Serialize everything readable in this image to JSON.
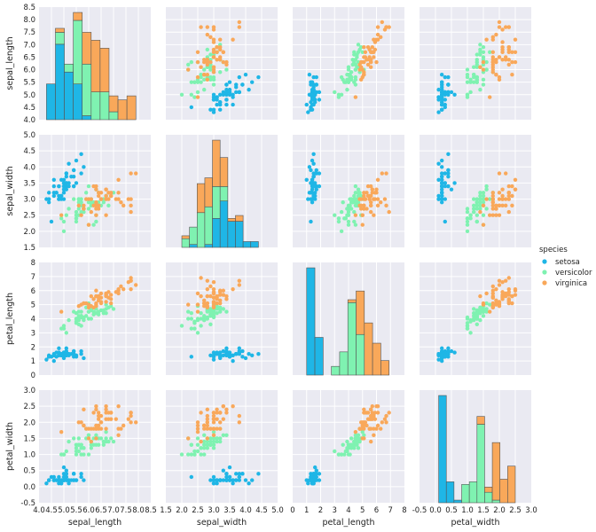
{
  "chart_data": {
    "type": "scatter",
    "kind": "pairplot",
    "grid": true,
    "legend_position": "right",
    "variables": [
      {
        "name": "sepal_length",
        "range": [
          4.0,
          8.5
        ],
        "ticks": [
          "4.0",
          "4.5",
          "5.0",
          "5.5",
          "6.0",
          "6.5",
          "7.0",
          "7.5",
          "8.0",
          "8.5"
        ]
      },
      {
        "name": "sepal_width",
        "range": [
          1.5,
          5.0
        ],
        "ticks": [
          "1.5",
          "2.0",
          "2.5",
          "3.0",
          "3.5",
          "4.0",
          "4.5",
          "5.0"
        ]
      },
      {
        "name": "petal_length",
        "range": [
          0,
          8
        ],
        "ticks": [
          "0",
          "1",
          "2",
          "3",
          "4",
          "5",
          "6",
          "7",
          "8"
        ]
      },
      {
        "name": "petal_width",
        "range": [
          -0.5,
          3.0
        ],
        "ticks": [
          "-0.5",
          "0.0",
          "0.5",
          "1.0",
          "1.5",
          "2.0",
          "2.5",
          "3.0"
        ]
      }
    ],
    "legend": {
      "title": "species",
      "entries": [
        {
          "name": "setosa",
          "color": "#1fb6e6"
        },
        {
          "name": "versicolor",
          "color": "#7ff2b1"
        },
        {
          "name": "virginica",
          "color": "#f9a85a"
        }
      ]
    },
    "colors": {
      "panel_bg": "#eaeaf2",
      "grid": "#ffffff",
      "edge": "#555555"
    },
    "series": [
      {
        "name": "setosa",
        "points": [
          [
            5.1,
            3.5,
            1.4,
            0.2
          ],
          [
            4.9,
            3.0,
            1.4,
            0.2
          ],
          [
            4.7,
            3.2,
            1.3,
            0.2
          ],
          [
            4.6,
            3.1,
            1.5,
            0.2
          ],
          [
            5.0,
            3.6,
            1.4,
            0.2
          ],
          [
            5.4,
            3.9,
            1.7,
            0.4
          ],
          [
            4.6,
            3.4,
            1.4,
            0.3
          ],
          [
            5.0,
            3.4,
            1.5,
            0.2
          ],
          [
            4.4,
            2.9,
            1.4,
            0.2
          ],
          [
            4.9,
            3.1,
            1.5,
            0.1
          ],
          [
            5.4,
            3.7,
            1.5,
            0.2
          ],
          [
            4.8,
            3.4,
            1.6,
            0.2
          ],
          [
            4.8,
            3.0,
            1.4,
            0.1
          ],
          [
            4.3,
            3.0,
            1.1,
            0.1
          ],
          [
            5.8,
            4.0,
            1.2,
            0.2
          ],
          [
            5.7,
            4.4,
            1.5,
            0.4
          ],
          [
            5.4,
            3.9,
            1.3,
            0.4
          ],
          [
            5.1,
            3.5,
            1.4,
            0.3
          ],
          [
            5.7,
            3.8,
            1.7,
            0.3
          ],
          [
            5.1,
            3.8,
            1.5,
            0.3
          ],
          [
            5.4,
            3.4,
            1.7,
            0.2
          ],
          [
            5.1,
            3.7,
            1.5,
            0.4
          ],
          [
            4.6,
            3.6,
            1.0,
            0.2
          ],
          [
            5.1,
            3.3,
            1.7,
            0.5
          ],
          [
            4.8,
            3.4,
            1.9,
            0.2
          ],
          [
            5.0,
            3.0,
            1.6,
            0.2
          ],
          [
            5.0,
            3.4,
            1.6,
            0.4
          ],
          [
            5.2,
            3.5,
            1.5,
            0.2
          ],
          [
            5.2,
            3.4,
            1.4,
            0.2
          ],
          [
            4.7,
            3.2,
            1.6,
            0.2
          ],
          [
            4.8,
            3.1,
            1.6,
            0.2
          ],
          [
            5.4,
            3.4,
            1.5,
            0.4
          ],
          [
            5.2,
            4.1,
            1.5,
            0.1
          ],
          [
            5.5,
            4.2,
            1.4,
            0.2
          ],
          [
            4.9,
            3.1,
            1.5,
            0.2
          ],
          [
            5.0,
            3.2,
            1.2,
            0.2
          ],
          [
            5.5,
            3.5,
            1.3,
            0.2
          ],
          [
            4.9,
            3.6,
            1.4,
            0.1
          ],
          [
            4.4,
            3.0,
            1.3,
            0.2
          ],
          [
            5.1,
            3.4,
            1.5,
            0.2
          ],
          [
            5.0,
            3.5,
            1.3,
            0.3
          ],
          [
            4.5,
            2.3,
            1.3,
            0.3
          ],
          [
            4.4,
            3.2,
            1.3,
            0.2
          ],
          [
            5.0,
            3.5,
            1.6,
            0.6
          ],
          [
            5.1,
            3.8,
            1.9,
            0.4
          ],
          [
            4.8,
            3.0,
            1.4,
            0.3
          ],
          [
            5.1,
            3.8,
            1.6,
            0.2
          ],
          [
            4.6,
            3.2,
            1.4,
            0.2
          ],
          [
            5.3,
            3.7,
            1.5,
            0.2
          ],
          [
            5.0,
            3.3,
            1.4,
            0.2
          ]
        ]
      },
      {
        "name": "versicolor",
        "points": [
          [
            7.0,
            3.2,
            4.7,
            1.4
          ],
          [
            6.4,
            3.2,
            4.5,
            1.5
          ],
          [
            6.9,
            3.1,
            4.9,
            1.5
          ],
          [
            5.5,
            2.3,
            4.0,
            1.3
          ],
          [
            6.5,
            2.8,
            4.6,
            1.5
          ],
          [
            5.7,
            2.8,
            4.5,
            1.3
          ],
          [
            6.3,
            3.3,
            4.7,
            1.6
          ],
          [
            4.9,
            2.4,
            3.3,
            1.0
          ],
          [
            6.6,
            2.9,
            4.6,
            1.3
          ],
          [
            5.2,
            2.7,
            3.9,
            1.4
          ],
          [
            5.0,
            2.0,
            3.5,
            1.0
          ],
          [
            5.9,
            3.0,
            4.2,
            1.5
          ],
          [
            6.0,
            2.2,
            4.0,
            1.0
          ],
          [
            6.1,
            2.9,
            4.7,
            1.4
          ],
          [
            5.6,
            2.9,
            3.6,
            1.3
          ],
          [
            6.7,
            3.1,
            4.4,
            1.4
          ],
          [
            5.6,
            3.0,
            4.5,
            1.5
          ],
          [
            5.8,
            2.7,
            4.1,
            1.0
          ],
          [
            6.2,
            2.2,
            4.5,
            1.5
          ],
          [
            5.6,
            2.5,
            3.9,
            1.1
          ],
          [
            5.9,
            3.2,
            4.8,
            1.8
          ],
          [
            6.1,
            2.8,
            4.0,
            1.3
          ],
          [
            6.3,
            2.5,
            4.9,
            1.5
          ],
          [
            6.1,
            2.8,
            4.7,
            1.2
          ],
          [
            6.4,
            2.9,
            4.3,
            1.3
          ],
          [
            6.6,
            3.0,
            4.4,
            1.4
          ],
          [
            6.8,
            2.8,
            4.8,
            1.4
          ],
          [
            6.7,
            3.0,
            5.0,
            1.7
          ],
          [
            6.0,
            2.9,
            4.5,
            1.5
          ],
          [
            5.7,
            2.6,
            3.5,
            1.0
          ],
          [
            5.5,
            2.4,
            3.8,
            1.1
          ],
          [
            5.5,
            2.4,
            3.7,
            1.0
          ],
          [
            5.8,
            2.7,
            3.9,
            1.2
          ],
          [
            6.0,
            2.7,
            5.1,
            1.6
          ],
          [
            5.4,
            3.0,
            4.5,
            1.5
          ],
          [
            6.0,
            3.4,
            4.5,
            1.6
          ],
          [
            6.7,
            3.1,
            4.7,
            1.5
          ],
          [
            6.3,
            2.3,
            4.4,
            1.3
          ],
          [
            5.6,
            3.0,
            4.1,
            1.3
          ],
          [
            5.5,
            2.5,
            4.0,
            1.3
          ],
          [
            5.5,
            2.6,
            4.4,
            1.2
          ],
          [
            6.1,
            3.0,
            4.6,
            1.4
          ],
          [
            5.8,
            2.6,
            4.0,
            1.2
          ],
          [
            5.0,
            2.3,
            3.3,
            1.0
          ],
          [
            5.6,
            2.7,
            4.2,
            1.3
          ],
          [
            5.7,
            3.0,
            4.2,
            1.2
          ],
          [
            5.7,
            2.9,
            4.2,
            1.3
          ],
          [
            6.2,
            2.9,
            4.3,
            1.3
          ],
          [
            5.1,
            2.5,
            3.0,
            1.1
          ],
          [
            5.7,
            2.8,
            4.1,
            1.3
          ]
        ]
      },
      {
        "name": "virginica",
        "points": [
          [
            6.3,
            3.3,
            6.0,
            2.5
          ],
          [
            5.8,
            2.7,
            5.1,
            1.9
          ],
          [
            7.1,
            3.0,
            5.9,
            2.1
          ],
          [
            6.3,
            2.9,
            5.6,
            1.8
          ],
          [
            6.5,
            3.0,
            5.8,
            2.2
          ],
          [
            7.6,
            3.0,
            6.6,
            2.1
          ],
          [
            4.9,
            2.5,
            4.5,
            1.7
          ],
          [
            7.3,
            2.9,
            6.3,
            1.8
          ],
          [
            6.7,
            2.5,
            5.8,
            1.8
          ],
          [
            7.2,
            3.6,
            6.1,
            2.5
          ],
          [
            6.5,
            3.2,
            5.1,
            2.0
          ],
          [
            6.4,
            2.7,
            5.3,
            1.9
          ],
          [
            6.8,
            3.0,
            5.5,
            2.1
          ],
          [
            5.7,
            2.5,
            5.0,
            2.0
          ],
          [
            5.8,
            2.8,
            5.1,
            2.4
          ],
          [
            6.4,
            3.2,
            5.3,
            2.3
          ],
          [
            6.5,
            3.0,
            5.5,
            1.8
          ],
          [
            7.7,
            3.8,
            6.7,
            2.2
          ],
          [
            7.7,
            2.6,
            6.9,
            2.3
          ],
          [
            6.0,
            2.2,
            5.0,
            1.5
          ],
          [
            6.9,
            3.2,
            5.7,
            2.3
          ],
          [
            5.6,
            2.8,
            4.9,
            2.0
          ],
          [
            7.7,
            2.8,
            6.7,
            2.0
          ],
          [
            6.3,
            2.7,
            4.9,
            1.8
          ],
          [
            6.7,
            3.3,
            5.7,
            2.1
          ],
          [
            7.2,
            3.2,
            6.0,
            1.8
          ],
          [
            6.2,
            2.8,
            4.8,
            1.8
          ],
          [
            6.1,
            3.0,
            4.9,
            1.8
          ],
          [
            6.4,
            2.8,
            5.6,
            2.1
          ],
          [
            7.2,
            3.0,
            5.8,
            1.6
          ],
          [
            7.4,
            2.8,
            6.1,
            1.9
          ],
          [
            7.9,
            3.8,
            6.4,
            2.0
          ],
          [
            6.4,
            2.8,
            5.6,
            2.2
          ],
          [
            6.3,
            2.8,
            5.1,
            1.5
          ],
          [
            6.1,
            2.6,
            5.6,
            1.4
          ],
          [
            7.7,
            3.0,
            6.1,
            2.3
          ],
          [
            6.3,
            3.4,
            5.6,
            2.4
          ],
          [
            6.4,
            3.1,
            5.5,
            1.8
          ],
          [
            6.0,
            3.0,
            4.8,
            1.8
          ],
          [
            6.9,
            3.1,
            5.4,
            2.1
          ],
          [
            6.7,
            3.1,
            5.6,
            2.4
          ],
          [
            6.9,
            3.1,
            5.1,
            2.3
          ],
          [
            5.8,
            2.7,
            5.1,
            1.9
          ],
          [
            6.8,
            3.2,
            5.9,
            2.3
          ],
          [
            6.7,
            3.3,
            5.7,
            2.5
          ],
          [
            6.7,
            3.0,
            5.2,
            2.3
          ],
          [
            6.3,
            2.5,
            5.0,
            1.9
          ],
          [
            6.5,
            3.0,
            5.2,
            2.0
          ],
          [
            6.2,
            3.4,
            5.4,
            2.3
          ],
          [
            5.9,
            3.0,
            5.1,
            1.8
          ]
        ]
      }
    ]
  }
}
